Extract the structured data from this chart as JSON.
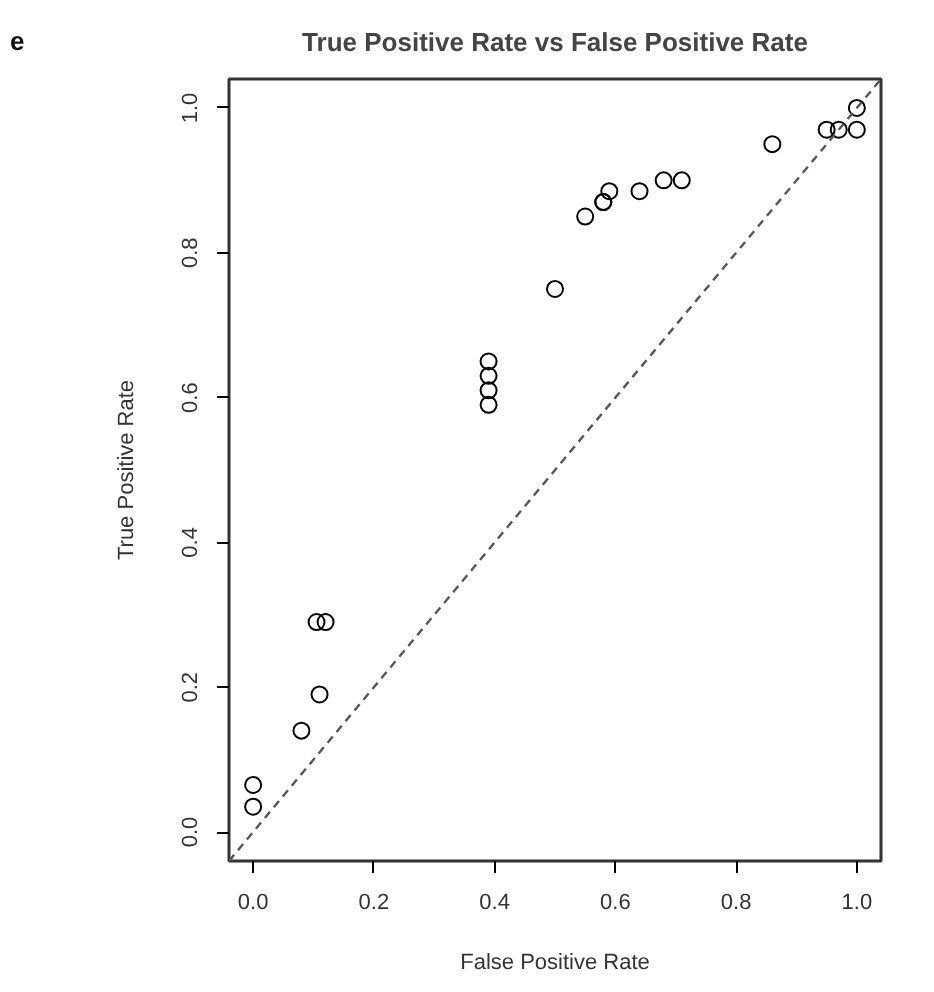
{
  "chart_data": {
    "type": "scatter",
    "title": "True Positive Rate vs False Positive Rate",
    "xlabel": "False Positive Rate",
    "ylabel": "True Positive Rate",
    "annotations": [
      "e"
    ],
    "xlim": [
      -0.04,
      1.04
    ],
    "ylim": [
      -0.04,
      1.04
    ],
    "xticks": [
      {
        "value": 0,
        "label": "0.0"
      },
      0.2,
      0.4,
      0.6,
      0.8,
      {
        "value": 1,
        "label": "1.0"
      }
    ],
    "yticks": [
      {
        "value": 0,
        "label": "0.0"
      },
      0.2,
      0.4,
      0.6,
      0.8,
      {
        "value": 1,
        "label": "1.0"
      }
    ],
    "grid": false,
    "series": [
      {
        "marker": "circle",
        "color": "#000000",
        "x": [
          0.0,
          0.0,
          0.08,
          0.11,
          0.105,
          0.12,
          0.39,
          0.39,
          0.39,
          0.39,
          0.5,
          0.55,
          0.58,
          0.58,
          0.59,
          0.64,
          0.68,
          0.71,
          0.86,
          0.95,
          0.97,
          1.0,
          1.0
        ],
        "values": [
          0.065,
          0.035,
          0.14,
          0.19,
          0.29,
          0.29,
          0.59,
          0.61,
          0.63,
          0.65,
          0.75,
          0.85,
          0.87,
          0.87,
          0.885,
          0.885,
          0.9,
          0.9,
          0.95,
          0.97,
          0.97,
          0.97,
          1.0
        ]
      },
      {
        "type": "line",
        "line_style": "dashed",
        "color": "#555555",
        "x": [
          -0.04,
          1.04
        ],
        "values": [
          -0.04,
          1.04
        ]
      }
    ]
  }
}
